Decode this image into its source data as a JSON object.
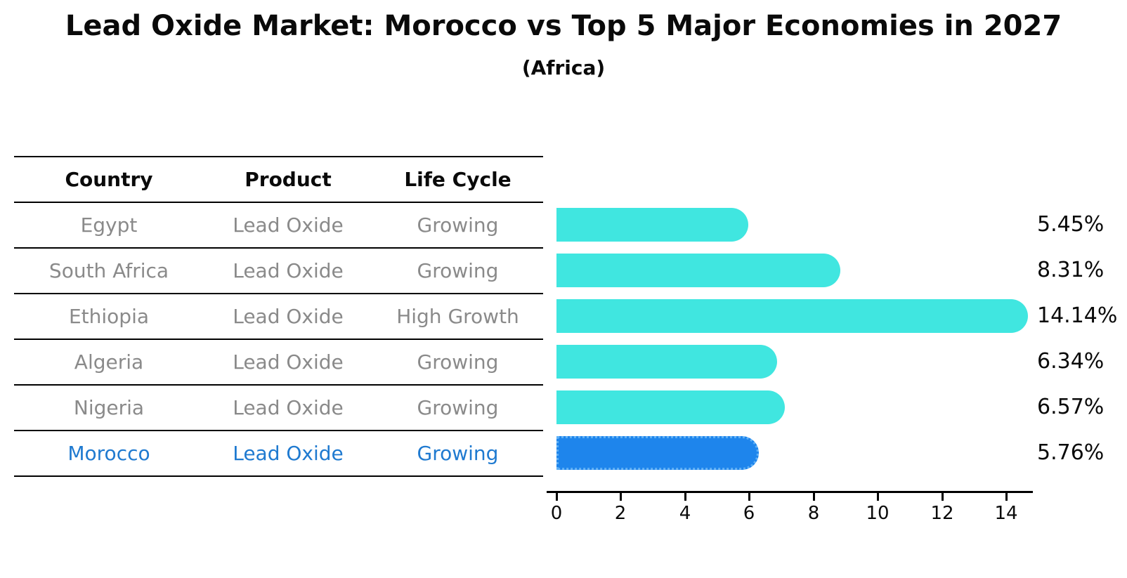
{
  "title": "Lead Oxide Market: Morocco vs Top 5 Major Economies in 2027",
  "subtitle": "(Africa)",
  "table": {
    "headers": {
      "country": "Country",
      "product": "Product",
      "life_cycle": "Life Cycle"
    },
    "rows": [
      {
        "country": "Egypt",
        "product": "Lead Oxide",
        "life_cycle": "Growing"
      },
      {
        "country": "South Africa",
        "product": "Lead Oxide",
        "life_cycle": "Growing"
      },
      {
        "country": "Ethiopia",
        "product": "Lead Oxide",
        "life_cycle": "High Growth"
      },
      {
        "country": "Algeria",
        "product": "Lead Oxide",
        "life_cycle": "Growing"
      },
      {
        "country": "Nigeria",
        "product": "Lead Oxide",
        "life_cycle": "Growing"
      },
      {
        "country": "Morocco",
        "product": "Lead Oxide",
        "life_cycle": "Growing"
      }
    ]
  },
  "chart_data": {
    "type": "bar",
    "orientation": "horizontal",
    "title": "Lead Oxide Market: Morocco vs Top 5 Major Economies in 2027",
    "subtitle": "(Africa)",
    "categories": [
      "Egypt",
      "South Africa",
      "Ethiopia",
      "Algeria",
      "Nigeria",
      "Morocco"
    ],
    "values": [
      5.45,
      8.31,
      14.14,
      6.34,
      6.57,
      5.76
    ],
    "value_labels": [
      "5.45%",
      "8.31%",
      "14.14%",
      "6.34%",
      "6.57%",
      "5.76%"
    ],
    "highlighted_category": "Morocco",
    "x_ticks": [
      "0",
      "2",
      "4",
      "6",
      "8",
      "10",
      "12",
      "14"
    ],
    "xlim": [
      0,
      15
    ],
    "grid": false,
    "legend": "none",
    "colors": {
      "bar": "#40e6e0",
      "highlight_bar": "#1e85ec",
      "highlight_border": "#5fb0f6",
      "row_text": "#8a8a8a",
      "highlight_text": "#1f7ad0",
      "axis": "#000000"
    }
  }
}
